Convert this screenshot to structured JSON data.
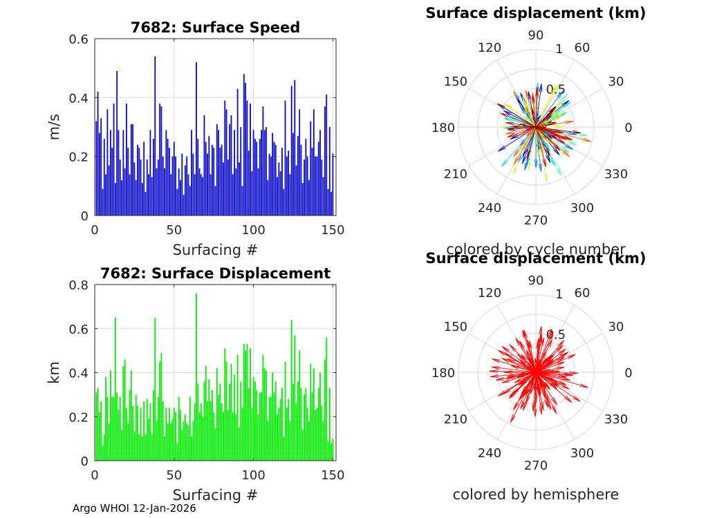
{
  "footer": "Argo WHOI 12-Jan-2026",
  "colors": {
    "speed_bar": "#0a0ad2",
    "disp_bar": "#00f000",
    "hemisphere_arrow": "#ff0000",
    "grid": "#dcdcdc",
    "axis": "#262626"
  },
  "chart_data": [
    {
      "type": "bar",
      "title": "7682: Surface Speed",
      "xlabel": "Surfacing #",
      "ylabel": "m/s",
      "xlim": [
        0,
        152
      ],
      "ylim": [
        0,
        0.6
      ],
      "xticks": [
        0,
        50,
        100,
        150
      ],
      "xtick_labels": [
        "0",
        "50",
        "100",
        "150"
      ],
      "yticks": [
        0,
        0.2,
        0.4,
        0.6
      ],
      "ytick_labels": [
        "0",
        "0.2",
        "0.4",
        "0.6"
      ],
      "values": [
        0.32,
        0.42,
        0.28,
        0.33,
        0.09,
        0.26,
        0.14,
        0.36,
        0.17,
        0.29,
        0.23,
        0.38,
        0.11,
        0.49,
        0.29,
        0.19,
        0.12,
        0.29,
        0.16,
        0.38,
        0.23,
        0.14,
        0.31,
        0.31,
        0.18,
        0.12,
        0.24,
        0.23,
        0.19,
        0.11,
        0.25,
        0.08,
        0.19,
        0.14,
        0.29,
        0.13,
        0.26,
        0.54,
        0.16,
        0.19,
        0.38,
        0.37,
        0.2,
        0.16,
        0.29,
        0.26,
        0.23,
        0.14,
        0.2,
        0.25,
        0.2,
        0.09,
        0.16,
        0.12,
        0.21,
        0.07,
        0.17,
        0.2,
        0.14,
        0.1,
        0.29,
        0.21,
        0.14,
        0.52,
        0.26,
        0.16,
        0.14,
        0.13,
        0.34,
        0.25,
        0.21,
        0.27,
        0.14,
        0.24,
        0.23,
        0.1,
        0.31,
        0.29,
        0.23,
        0.24,
        0.18,
        0.39,
        0.36,
        0.19,
        0.31,
        0.34,
        0.14,
        0.29,
        0.16,
        0.43,
        0.18,
        0.3,
        0.1,
        0.48,
        0.45,
        0.39,
        0.22,
        0.38,
        0.15,
        0.29,
        0.26,
        0.25,
        0.16,
        0.26,
        0.29,
        0.37,
        0.29,
        0.3,
        0.12,
        0.21,
        0.2,
        0.28,
        0.25,
        0.24,
        0.13,
        0.18,
        0.15,
        0.23,
        0.09,
        0.39,
        0.2,
        0.22,
        0.14,
        0.44,
        0.28,
        0.46,
        0.17,
        0.27,
        0.36,
        0.24,
        0.11,
        0.19,
        0.26,
        0.2,
        0.12,
        0.32,
        0.23,
        0.36,
        0.2,
        0.2,
        0.25,
        0.29,
        0.19,
        0.13,
        0.37,
        0.41,
        0.09,
        0.3,
        0.08,
        0.21
      ]
    },
    {
      "type": "polar",
      "title": "Surface displacement (km)",
      "subtitle": "colored by cycle number",
      "rlim": [
        0,
        1
      ],
      "rticks": [
        0.5,
        1
      ],
      "rtick_labels": [
        "0.5",
        "1"
      ],
      "theta_ticks": [
        0,
        30,
        60,
        90,
        120,
        150,
        180,
        210,
        240,
        270,
        300,
        330
      ],
      "theta_tick_labels": [
        "0",
        "30",
        "60",
        "90",
        "120",
        "150",
        "180",
        "210",
        "240",
        "270",
        "300",
        "330"
      ],
      "colormap": [
        "#00008f",
        "#0000ff",
        "#0070ff",
        "#00e0ff",
        "#50ffaf",
        "#c0ff40",
        "#ffd000",
        "#ff6000",
        "#d00000",
        "#800000"
      ]
    },
    {
      "type": "bar",
      "title": "7682: Surface Displacement",
      "xlabel": "Surfacing #",
      "ylabel": "km",
      "xlim": [
        0,
        152
      ],
      "ylim": [
        0,
        0.8
      ],
      "xticks": [
        0,
        50,
        100,
        150
      ],
      "xtick_labels": [
        "0",
        "50",
        "100",
        "150"
      ],
      "yticks": [
        0,
        0.2,
        0.4,
        0.6,
        0.8
      ],
      "ytick_labels": [
        "0",
        "0.2",
        "0.4",
        "0.6",
        "0.8"
      ],
      "values": [
        0.31,
        0.33,
        0.22,
        0.27,
        0.07,
        0.12,
        0.38,
        0.29,
        0.17,
        0.41,
        0.29,
        0.29,
        0.65,
        0.31,
        0.23,
        0.29,
        0.14,
        0.43,
        0.46,
        0.24,
        0.17,
        0.32,
        0.41,
        0.25,
        0.13,
        0.3,
        0.25,
        0.12,
        0.24,
        0.11,
        0.27,
        0.12,
        0.28,
        0.19,
        0.26,
        0.12,
        0.32,
        0.65,
        0.18,
        0.29,
        0.45,
        0.49,
        0.27,
        0.11,
        0.24,
        0.17,
        0.24,
        0.17,
        0.19,
        0.24,
        0.22,
        0.08,
        0.29,
        0.23,
        0.14,
        0.18,
        0.21,
        0.17,
        0.16,
        0.29,
        0.11,
        0.18,
        0.26,
        0.76,
        0.35,
        0.22,
        0.26,
        0.2,
        0.36,
        0.43,
        0.27,
        0.37,
        0.27,
        0.32,
        0.22,
        0.15,
        0.42,
        0.3,
        0.35,
        0.26,
        0.22,
        0.51,
        0.45,
        0.23,
        0.35,
        0.44,
        0.22,
        0.39,
        0.21,
        0.48,
        0.15,
        0.36,
        0.24,
        0.53,
        0.5,
        0.53,
        0.33,
        0.51,
        0.24,
        0.38,
        0.36,
        0.32,
        0.21,
        0.31,
        0.31,
        0.48,
        0.42,
        0.41,
        0.18,
        0.29,
        0.29,
        0.4,
        0.31,
        0.36,
        0.21,
        0.24,
        0.28,
        0.33,
        0.11,
        0.45,
        0.24,
        0.28,
        0.18,
        0.64,
        0.35,
        0.57,
        0.26,
        0.36,
        0.5,
        0.33,
        0.14,
        0.3,
        0.33,
        0.24,
        0.18,
        0.44,
        0.31,
        0.42,
        0.23,
        0.24,
        0.33,
        0.4,
        0.25,
        0.18,
        0.46,
        0.56,
        0.09,
        0.33,
        0.08,
        0.1
      ]
    },
    {
      "type": "polar",
      "title": "Surface displacement (km)",
      "subtitle": "colored by hemisphere",
      "rlim": [
        0,
        1
      ],
      "rticks": [
        0.5,
        1
      ],
      "rtick_labels": [
        "0.5",
        "1"
      ],
      "theta_ticks": [
        0,
        30,
        60,
        90,
        120,
        150,
        180,
        210,
        240,
        270,
        300,
        330
      ],
      "theta_tick_labels": [
        "0",
        "30",
        "60",
        "90",
        "120",
        "150",
        "180",
        "210",
        "240",
        "270",
        "300",
        "330"
      ]
    }
  ]
}
